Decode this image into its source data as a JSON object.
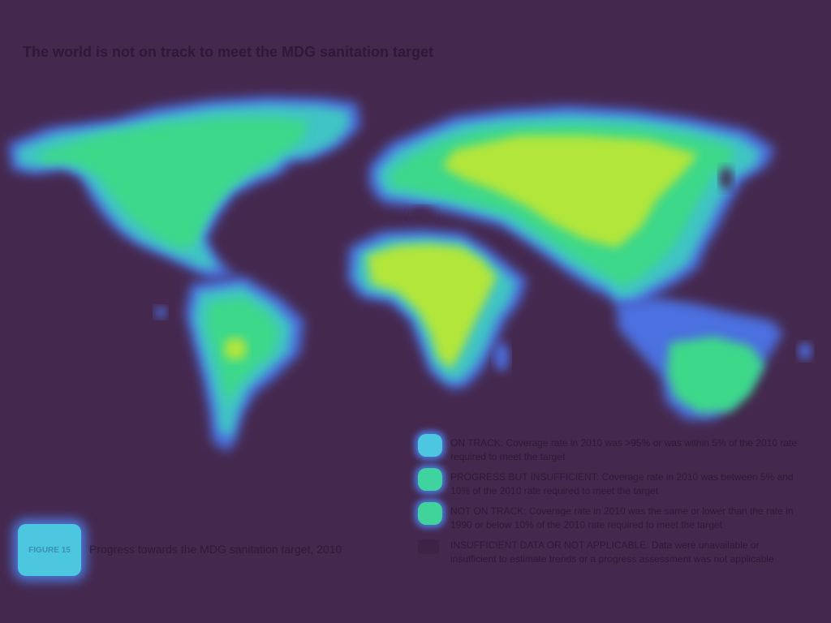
{
  "title": "The world is not on track to meet the MDG sanitation target",
  "figure": {
    "label": "FIGURE 15",
    "caption": "Progress towards the MDG sanitation target, 2010"
  },
  "map": {
    "regions": [
      "north-america",
      "south-america",
      "europe-asia",
      "africa",
      "oceania"
    ]
  },
  "legend": [
    {
      "key": "on-track",
      "color": "#39c9b5",
      "text": "ON TRACK: Coverage rate in 2010 was >95% or was within 5% of the 2010 rate required to meet the target"
    },
    {
      "key": "progress-insufficient",
      "color": "#5ae35e",
      "text": "PROGRESS BUT INSUFFICIENT: Coverage rate in 2010 was between 5% and 10% of the 2010 rate required to meet the target"
    },
    {
      "key": "not-on-track",
      "color": "#3fd48c",
      "text": "NOT ON TRACK: Coverage rate in 2010 was the same or lower than the rate in 1990 or below 10% of the 2010 rate required to meet the target"
    },
    {
      "key": "insufficient-data",
      "color": "#3d2346",
      "text": "INSUFFICIENT DATA OR NOT APPLICABLE: Data were unavailable or insufficient to estimate trends or a progress assessment was not applicable"
    }
  ],
  "colors": {
    "background": "#45284e",
    "land_edge": "#4b6fe0",
    "land_mid": "#3fc4c4",
    "land_green": "#3ed88a",
    "land_yellow": "#b2e63b"
  }
}
